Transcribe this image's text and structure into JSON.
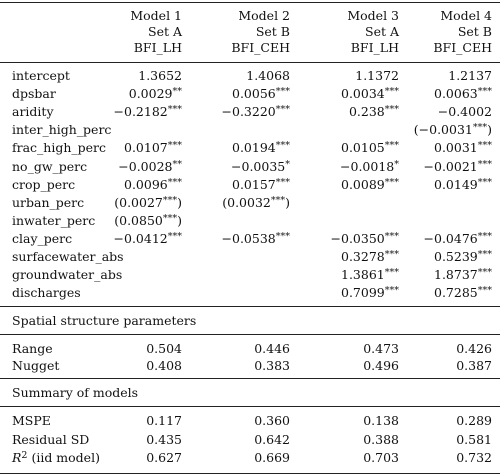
{
  "models": [
    {
      "name": "Model 1",
      "set": "Set A",
      "target": "BFI_LH"
    },
    {
      "name": "Model 2",
      "set": "Set B",
      "target": "BFI_CEH"
    },
    {
      "name": "Model 3",
      "set": "Set A",
      "target": "BFI_LH"
    },
    {
      "name": "Model 4",
      "set": "Set B",
      "target": "BFI_CEH"
    }
  ],
  "coef_rows": [
    {
      "label": "intercept",
      "cells": [
        "1.3652",
        "1.4068",
        "1.1372",
        "1.2137"
      ]
    },
    {
      "label": "dpsbar",
      "cells": [
        "0.0029**",
        "0.0056***",
        "0.0034***",
        "0.0063***"
      ]
    },
    {
      "label": "aridity",
      "cells": [
        "−0.2182***",
        "−0.3220***",
        "0.238***",
        "−0.4002"
      ]
    },
    {
      "label": "inter_high_perc",
      "cells": [
        "",
        "",
        "",
        "(−0.0031***)"
      ]
    },
    {
      "label": "frac_high_perc",
      "cells": [
        "0.0107***",
        "0.0194***",
        "0.0105***",
        "0.0031***"
      ]
    },
    {
      "label": "no_gw_perc",
      "cells": [
        "−0.0028**",
        "−0.0035*",
        "−0.0018*",
        "−0.0021***"
      ]
    },
    {
      "label": "crop_perc",
      "cells": [
        "0.0096***",
        "0.0157***",
        "0.0089***",
        "0.0149***"
      ]
    },
    {
      "label": "urban_perc",
      "cells": [
        "(0.0027***)",
        "(0.0032***)",
        "",
        ""
      ]
    },
    {
      "label": "inwater_perc",
      "cells": [
        "(0.0850***)",
        "",
        "",
        ""
      ]
    },
    {
      "label": "clay_perc",
      "cells": [
        "−0.0412***",
        "−0.0538***",
        "−0.0350***",
        "−0.0476***"
      ]
    },
    {
      "label": "surfacewater_abs",
      "cells": [
        "",
        "",
        "0.3278***",
        "0.5239***"
      ]
    },
    {
      "label": "groundwater_abs",
      "cells": [
        "",
        "",
        "1.3861***",
        "1.8737***"
      ]
    },
    {
      "label": "discharges",
      "cells": [
        "",
        "",
        "0.7099***",
        "0.7285***"
      ]
    }
  ],
  "spatial": {
    "title": "Spatial structure parameters",
    "rows": [
      {
        "label": "Range",
        "cells": [
          "0.504",
          "0.446",
          "0.473",
          "0.426"
        ]
      },
      {
        "label": "Nugget",
        "cells": [
          "0.408",
          "0.383",
          "0.496",
          "0.387"
        ]
      }
    ]
  },
  "summary": {
    "title": "Summary of models",
    "rows": [
      {
        "label": "MSPE",
        "cells": [
          "0.117",
          "0.360",
          "0.138",
          "0.289"
        ]
      },
      {
        "label": "Residual SD",
        "cells": [
          "0.435",
          "0.642",
          "0.388",
          "0.581"
        ]
      },
      {
        "label": "(iid model)",
        "cells": [
          "0.627",
          "0.669",
          "0.703",
          "0.732"
        ]
      }
    ],
    "r2_symbol": "R",
    "r2_power": "2"
  }
}
